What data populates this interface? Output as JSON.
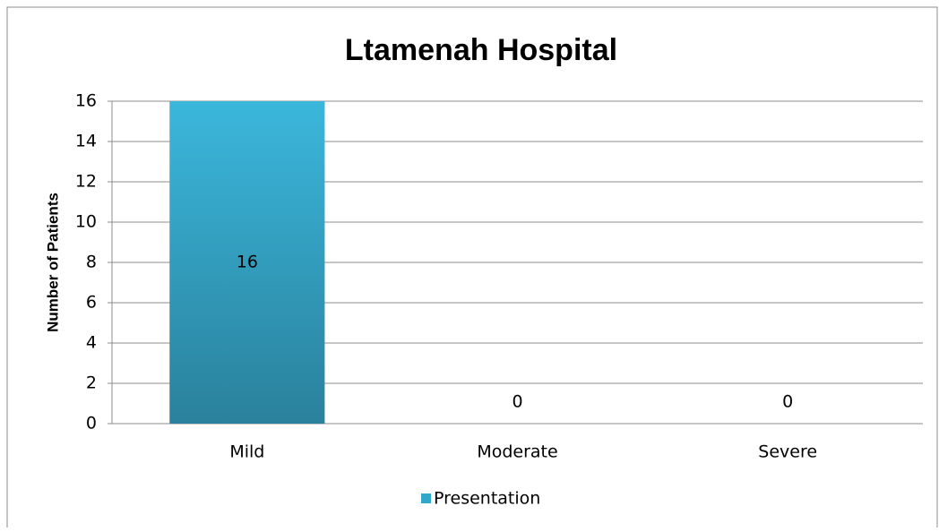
{
  "chart_data": {
    "type": "bar",
    "title": "Ltamenah Hospital",
    "y_label": "Number of Patients",
    "categories": [
      "Mild",
      "Moderate",
      "Severe"
    ],
    "series": [
      {
        "name": "Presentation",
        "color": "#31a7c9",
        "values": [
          16,
          0,
          0
        ]
      }
    ],
    "ylim": [
      0,
      16
    ],
    "yticks": [
      0,
      2,
      4,
      6,
      8,
      10,
      12,
      14,
      16
    ],
    "grid": true,
    "legend": "bottom"
  }
}
